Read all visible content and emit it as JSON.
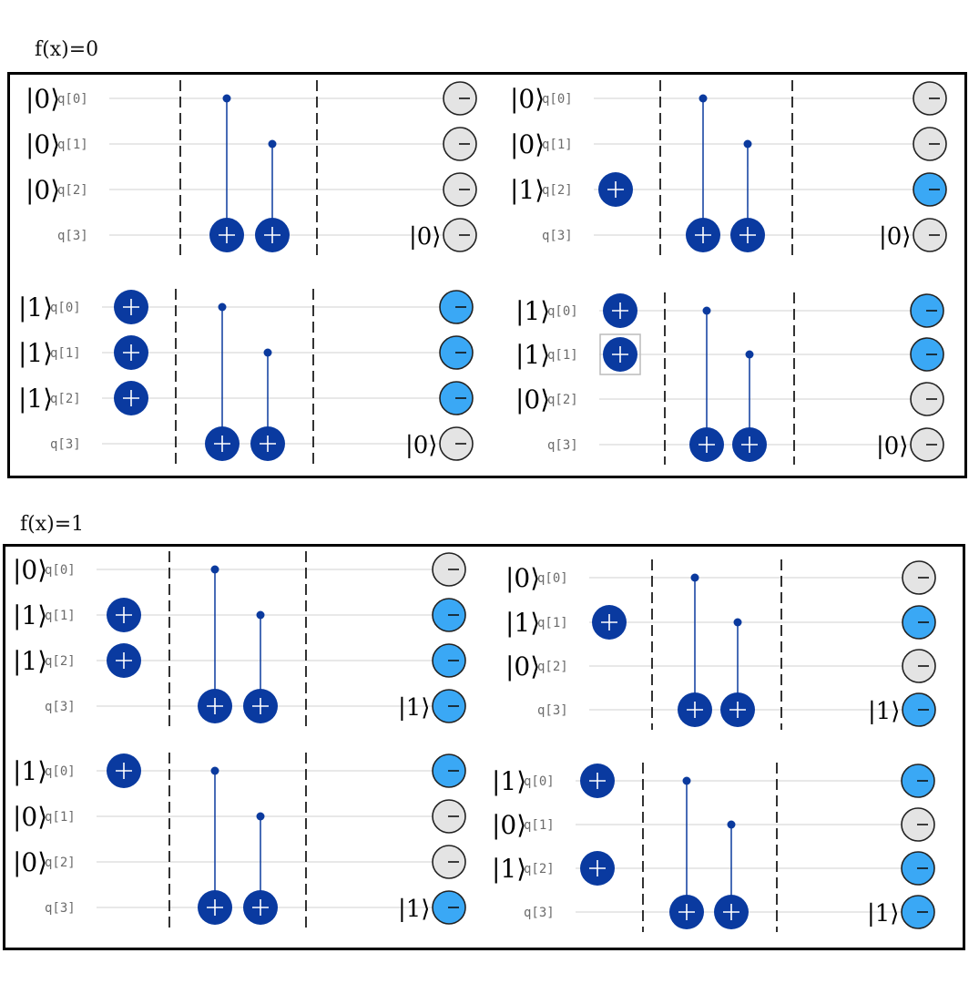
{
  "sections": [
    {
      "title": "f(x)=0",
      "circuits": [
        {
          "inputs": [
            "|0⟩",
            "|0⟩",
            "|0⟩",
            ""
          ],
          "qubits": [
            "q[0]",
            "q[1]",
            "q[2]",
            "q[3]"
          ],
          "x_gates": [
            false,
            false,
            false
          ],
          "outputs": [
            0,
            0,
            0,
            0
          ],
          "ancilla_ket": "|0⟩"
        },
        {
          "inputs": [
            "|0⟩",
            "|0⟩",
            "|1⟩",
            ""
          ],
          "qubits": [
            "q[0]",
            "q[1]",
            "q[2]",
            "q[3]"
          ],
          "x_gates": [
            false,
            false,
            true
          ],
          "outputs": [
            0,
            0,
            1,
            0
          ],
          "ancilla_ket": "|0⟩"
        },
        {
          "inputs": [
            "|1⟩",
            "|1⟩",
            "|1⟩",
            ""
          ],
          "qubits": [
            "q[0]",
            "q[1]",
            "q[2]",
            "q[3]"
          ],
          "x_gates": [
            true,
            true,
            true
          ],
          "outputs": [
            1,
            1,
            1,
            0
          ],
          "ancilla_ket": "|0⟩"
        },
        {
          "inputs": [
            "|1⟩",
            "|1⟩",
            "|0⟩",
            ""
          ],
          "qubits": [
            "q[0]",
            "q[1]",
            "q[2]",
            "q[3]"
          ],
          "x_gates": [
            true,
            true,
            false
          ],
          "outputs": [
            1,
            1,
            0,
            0
          ],
          "ancilla_ket": "|0⟩",
          "selected_gate": 1
        }
      ]
    },
    {
      "title": "f(x)=1",
      "circuits": [
        {
          "inputs": [
            "|0⟩",
            "|1⟩",
            "|1⟩",
            ""
          ],
          "qubits": [
            "q[0]",
            "q[1]",
            "q[2]",
            "q[3]"
          ],
          "x_gates": [
            false,
            true,
            true
          ],
          "outputs": [
            0,
            1,
            1,
            1
          ],
          "ancilla_ket": "|1⟩"
        },
        {
          "inputs": [
            "|0⟩",
            "|1⟩",
            "|0⟩",
            ""
          ],
          "qubits": [
            "q[0]",
            "q[1]",
            "q[2]",
            "q[3]"
          ],
          "x_gates": [
            false,
            true,
            false
          ],
          "outputs": [
            0,
            1,
            0,
            1
          ],
          "ancilla_ket": "|1⟩"
        },
        {
          "inputs": [
            "|1⟩",
            "|0⟩",
            "|0⟩",
            ""
          ],
          "qubits": [
            "q[0]",
            "q[1]",
            "q[2]",
            "q[3]"
          ],
          "x_gates": [
            true,
            false,
            false
          ],
          "outputs": [
            1,
            0,
            0,
            1
          ],
          "ancilla_ket": "|1⟩"
        },
        {
          "inputs": [
            "|1⟩",
            "|0⟩",
            "|1⟩",
            ""
          ],
          "qubits": [
            "q[0]",
            "q[1]",
            "q[2]",
            "q[3]"
          ],
          "x_gates": [
            true,
            false,
            true
          ],
          "outputs": [
            1,
            0,
            1,
            1
          ],
          "ancilla_ket": "|1⟩"
        }
      ]
    }
  ],
  "colors": {
    "gate_fill": "#0a3aa0",
    "control": "#0b3a9e",
    "measure_one": "#3aa8f5",
    "measure_zero": "#e4e4e4",
    "wire": "#d9d9d9",
    "border": "#000000"
  },
  "icons": {
    "gate": "cnot-target-plus-icon",
    "control": "control-dot-icon",
    "measure": "measurement-minus-icon"
  }
}
